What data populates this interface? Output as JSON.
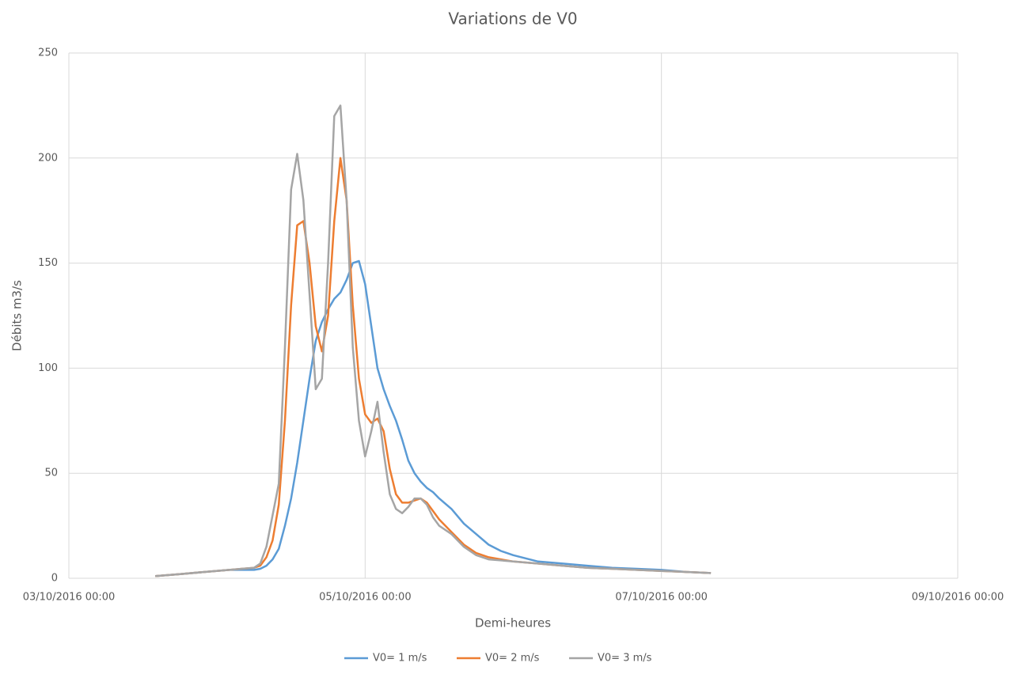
{
  "chart_data": {
    "type": "line",
    "title": "Variations de V0",
    "x_label": "Demi-heures",
    "y_label": "Débits m3/s",
    "x": [
      "2016-10-03 14:00",
      "2016-10-03 18:00",
      "2016-10-03 22:00",
      "2016-10-04 02:00",
      "2016-10-04 04:00",
      "2016-10-04 06:00",
      "2016-10-04 07:00",
      "2016-10-04 08:00",
      "2016-10-04 09:00",
      "2016-10-04 10:00",
      "2016-10-04 11:00",
      "2016-10-04 12:00",
      "2016-10-04 13:00",
      "2016-10-04 14:00",
      "2016-10-04 15:00",
      "2016-10-04 16:00",
      "2016-10-04 17:00",
      "2016-10-04 18:00",
      "2016-10-04 19:00",
      "2016-10-04 20:00",
      "2016-10-04 21:00",
      "2016-10-04 22:00",
      "2016-10-04 23:00",
      "2016-10-05 00:00",
      "2016-10-05 01:00",
      "2016-10-05 02:00",
      "2016-10-05 03:00",
      "2016-10-05 04:00",
      "2016-10-05 05:00",
      "2016-10-05 06:00",
      "2016-10-05 07:00",
      "2016-10-05 08:00",
      "2016-10-05 09:00",
      "2016-10-05 10:00",
      "2016-10-05 11:00",
      "2016-10-05 12:00",
      "2016-10-05 14:00",
      "2016-10-05 16:00",
      "2016-10-05 18:00",
      "2016-10-05 20:00",
      "2016-10-05 22:00",
      "2016-10-06 00:00",
      "2016-10-06 04:00",
      "2016-10-06 08:00",
      "2016-10-06 12:00",
      "2016-10-06 16:00",
      "2016-10-06 20:00",
      "2016-10-07 00:00",
      "2016-10-07 04:00",
      "2016-10-07 08:00"
    ],
    "series": [
      {
        "name": "V0= 1 m/s",
        "color": "#5b9bd5",
        "values": [
          1,
          2,
          3,
          4,
          4,
          4,
          4.5,
          6,
          9,
          14,
          25,
          38,
          55,
          75,
          95,
          113,
          122,
          128,
          133,
          136,
          142,
          150,
          151,
          140,
          120,
          100,
          90,
          82,
          75,
          66,
          56,
          50,
          46,
          43,
          41,
          38,
          33,
          26,
          21,
          16,
          13,
          11,
          8,
          7,
          6,
          5,
          4.5,
          4,
          3,
          2.5
        ]
      },
      {
        "name": "V0= 2 m/s",
        "color": "#ed7d31",
        "values": [
          1,
          2,
          3,
          4,
          4.5,
          5,
          6,
          10,
          18,
          35,
          75,
          130,
          168,
          170,
          150,
          120,
          108,
          125,
          170,
          200,
          180,
          130,
          95,
          78,
          74,
          76,
          70,
          52,
          40,
          36,
          36,
          37,
          38,
          36,
          32,
          28,
          22,
          16,
          12,
          10,
          9,
          8,
          7,
          6,
          5,
          4.5,
          4,
          3.5,
          3,
          2.5
        ]
      },
      {
        "name": "V0= 3 m/s",
        "color": "#a5a5a5",
        "values": [
          1,
          2,
          3,
          4,
          4.5,
          5,
          7,
          15,
          30,
          45,
          110,
          185,
          202,
          180,
          135,
          90,
          95,
          150,
          220,
          225,
          180,
          110,
          75,
          58,
          70,
          84,
          60,
          40,
          33,
          31,
          34,
          38,
          38,
          35,
          29,
          25,
          21,
          15,
          11,
          9,
          8.5,
          8,
          7,
          6,
          5,
          4.5,
          4,
          3.5,
          3,
          2.5
        ]
      }
    ],
    "xlim": [
      "2016-10-03 00:00",
      "2016-10-09 00:00"
    ],
    "xticks": [
      {
        "value": "2016-10-03 00:00",
        "label": "03/10/2016 00:00"
      },
      {
        "value": "2016-10-05 00:00",
        "label": "05/10/2016 00:00"
      },
      {
        "value": "2016-10-07 00:00",
        "label": "07/10/2016 00:00"
      },
      {
        "value": "2016-10-09 00:00",
        "label": "09/10/2016 00:00"
      }
    ],
    "ylim": [
      0,
      250
    ],
    "yticks": [
      0,
      50,
      100,
      150,
      200,
      250
    ],
    "grid": true,
    "legend": "bottom"
  }
}
